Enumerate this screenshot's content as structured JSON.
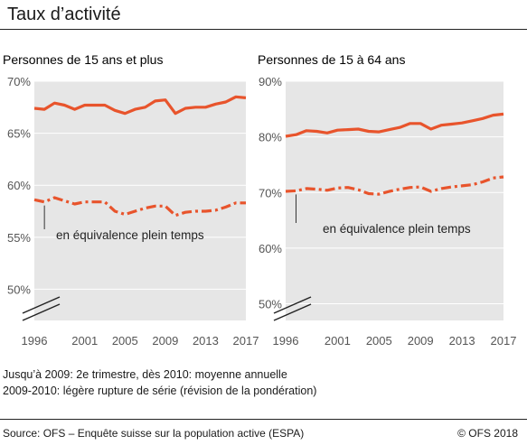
{
  "title": "Taux d’activité",
  "notes": {
    "line1": "Jusqu’à 2009:  2e trimestre, dès 2010:  moyenne annuelle",
    "line2": "2009-2010: légère rupture de série (révision de la pondération)"
  },
  "footer": {
    "source": "Source: OFS – Enquête suisse sur la population active (ESPA)",
    "copyright": "© OFS 2018"
  },
  "colors": {
    "series": "#e8542c",
    "plot_bg": "#e6e6e6",
    "grid": "#ffffff",
    "axis_text": "#555555"
  },
  "chart_data": [
    {
      "type": "line",
      "title": "Personnes de 15 ans et plus",
      "x": [
        1996,
        1997,
        1998,
        1999,
        2000,
        2001,
        2002,
        2003,
        2004,
        2005,
        2006,
        2007,
        2008,
        2009,
        2010,
        2011,
        2012,
        2013,
        2014,
        2015,
        2016,
        2017
      ],
      "xticks": [
        "1996",
        "2001",
        "2005",
        "2009",
        "2013",
        "2017"
      ],
      "ylim": [
        47,
        70
      ],
      "yticks": [
        50,
        55,
        60,
        65,
        70
      ],
      "ytick_labels": [
        "50%",
        "55%",
        "60%",
        "65%",
        "70%"
      ],
      "axis_break": true,
      "annotation": "en équivalence plein temps",
      "series": [
        {
          "style": "solid",
          "values": [
            67.4,
            67.3,
            67.9,
            67.7,
            67.3,
            67.7,
            67.7,
            67.7,
            67.2,
            66.9,
            67.3,
            67.5,
            68.1,
            68.2,
            66.9,
            67.4,
            67.5,
            67.5,
            67.8,
            68.0,
            68.5,
            68.4
          ]
        },
        {
          "style": "dashdot",
          "values": [
            58.6,
            58.4,
            58.8,
            58.5,
            58.2,
            58.4,
            58.4,
            58.4,
            57.5,
            57.2,
            57.5,
            57.8,
            58.0,
            58.0,
            57.1,
            57.4,
            57.5,
            57.5,
            57.6,
            57.9,
            58.3,
            58.3
          ]
        }
      ]
    },
    {
      "type": "line",
      "title": "Personnes de 15 à 64 ans",
      "x": [
        1996,
        1997,
        1998,
        1999,
        2000,
        2001,
        2002,
        2003,
        2004,
        2005,
        2006,
        2007,
        2008,
        2009,
        2010,
        2011,
        2012,
        2013,
        2014,
        2015,
        2016,
        2017
      ],
      "xticks": [
        "1996",
        "2001",
        "2005",
        "2009",
        "2013",
        "2017"
      ],
      "ylim": [
        47,
        90
      ],
      "yticks": [
        50,
        60,
        70,
        80,
        90
      ],
      "ytick_labels": [
        "50%",
        "60%",
        "70%",
        "80%",
        "90%"
      ],
      "axis_break": true,
      "annotation": "en équivalence plein temps",
      "series": [
        {
          "style": "solid",
          "values": [
            80.1,
            80.4,
            81.1,
            81.0,
            80.7,
            81.2,
            81.3,
            81.4,
            81.0,
            80.9,
            81.3,
            81.7,
            82.4,
            82.4,
            81.4,
            82.1,
            82.3,
            82.5,
            82.9,
            83.3,
            83.9,
            84.1
          ]
        },
        {
          "style": "dashdot",
          "values": [
            70.2,
            70.3,
            70.7,
            70.6,
            70.4,
            70.8,
            70.9,
            70.5,
            69.8,
            69.7,
            70.2,
            70.6,
            70.9,
            71.0,
            70.2,
            70.7,
            71.0,
            71.2,
            71.4,
            71.9,
            72.6,
            72.8
          ]
        }
      ]
    }
  ]
}
